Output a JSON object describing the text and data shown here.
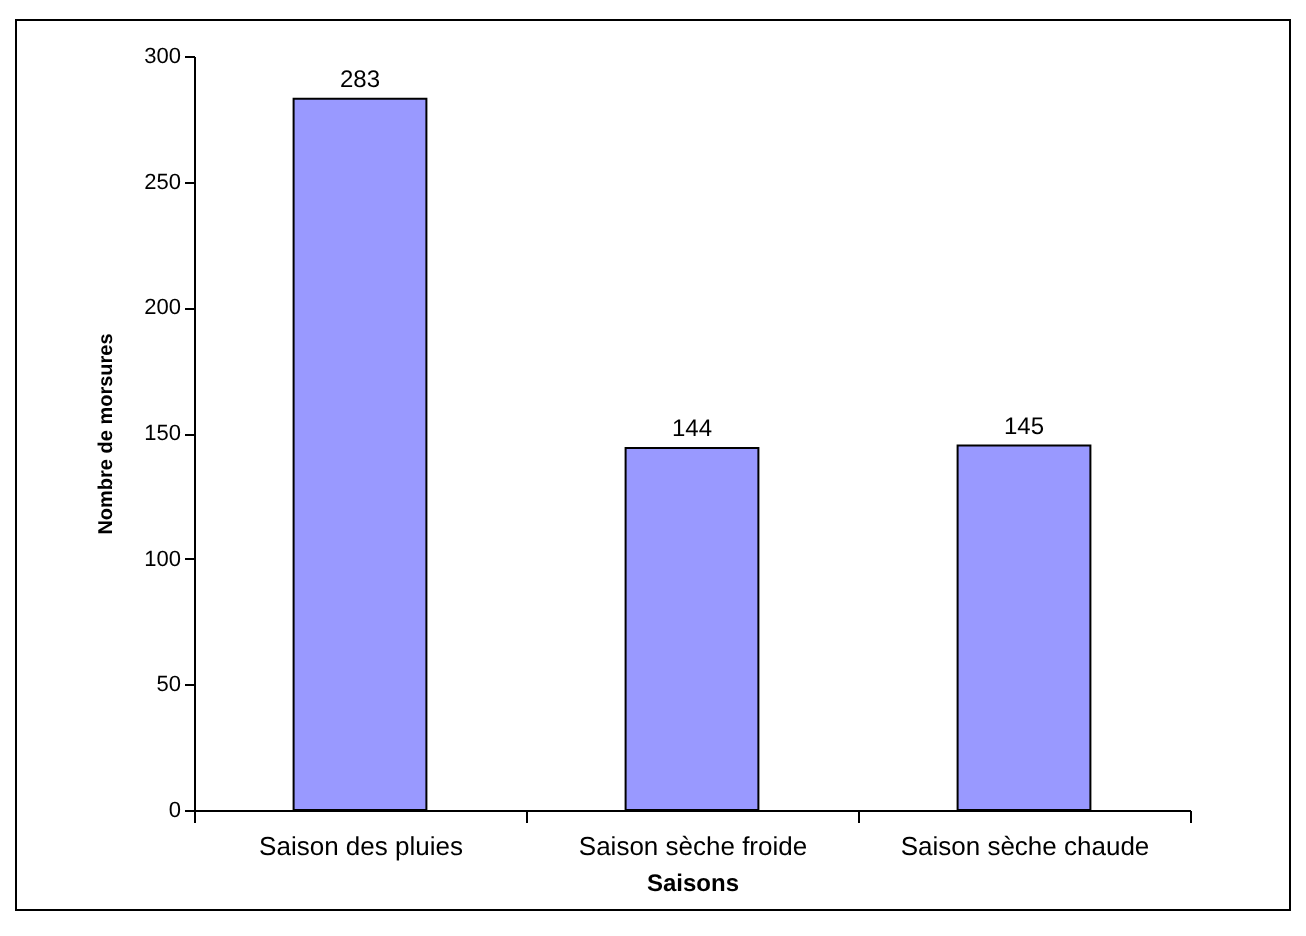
{
  "chart_data": {
    "type": "bar",
    "categories": [
      "Saison des pluies",
      "Saison sèche froide",
      "Saison sèche chaude"
    ],
    "values": [
      283,
      144,
      145
    ],
    "color": "#9999ff",
    "xlabel": "Saisons",
    "ylabel": "Nombre de morsures",
    "ylim": [
      0,
      300
    ],
    "yticks": [
      0,
      50,
      100,
      150,
      200,
      250,
      300
    ],
    "data_labels": true,
    "grid": false
  }
}
